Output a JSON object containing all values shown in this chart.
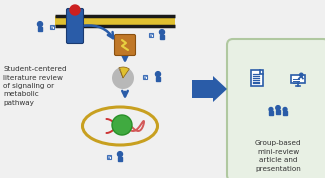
{
  "bg_color": "#f0f0f0",
  "right_panel_bg": "#e8f0e4",
  "right_panel_border": "#b0c8a0",
  "arrow_big_color": "#2a5ca8",
  "arrow_small_color": "#2a5ca8",
  "text_color": "#333333",
  "left_label": "Student-centered\nliterature review\nof signaling or\nmetabolic\npathway",
  "right_label": "Group-based\nmini-review\narticle and\npresentation",
  "membrane_black": "#1a1a1a",
  "membrane_yellow": "#e0c030",
  "receptor_blue": "#2a5ca8",
  "receptor_red": "#cc2020",
  "kinase_brown": "#c07828",
  "kinase_yellow": "#e8d040",
  "pie_gray": "#b8b8b8",
  "pie_yellow": "#e0c030",
  "nucleus_green": "#40aa40",
  "dna_red": "#cc3333",
  "dna_gold": "#c8a020",
  "student_blue": "#2a5ca8",
  "doc_blue": "#4070b8",
  "icon_blue": "#2a5ca8"
}
